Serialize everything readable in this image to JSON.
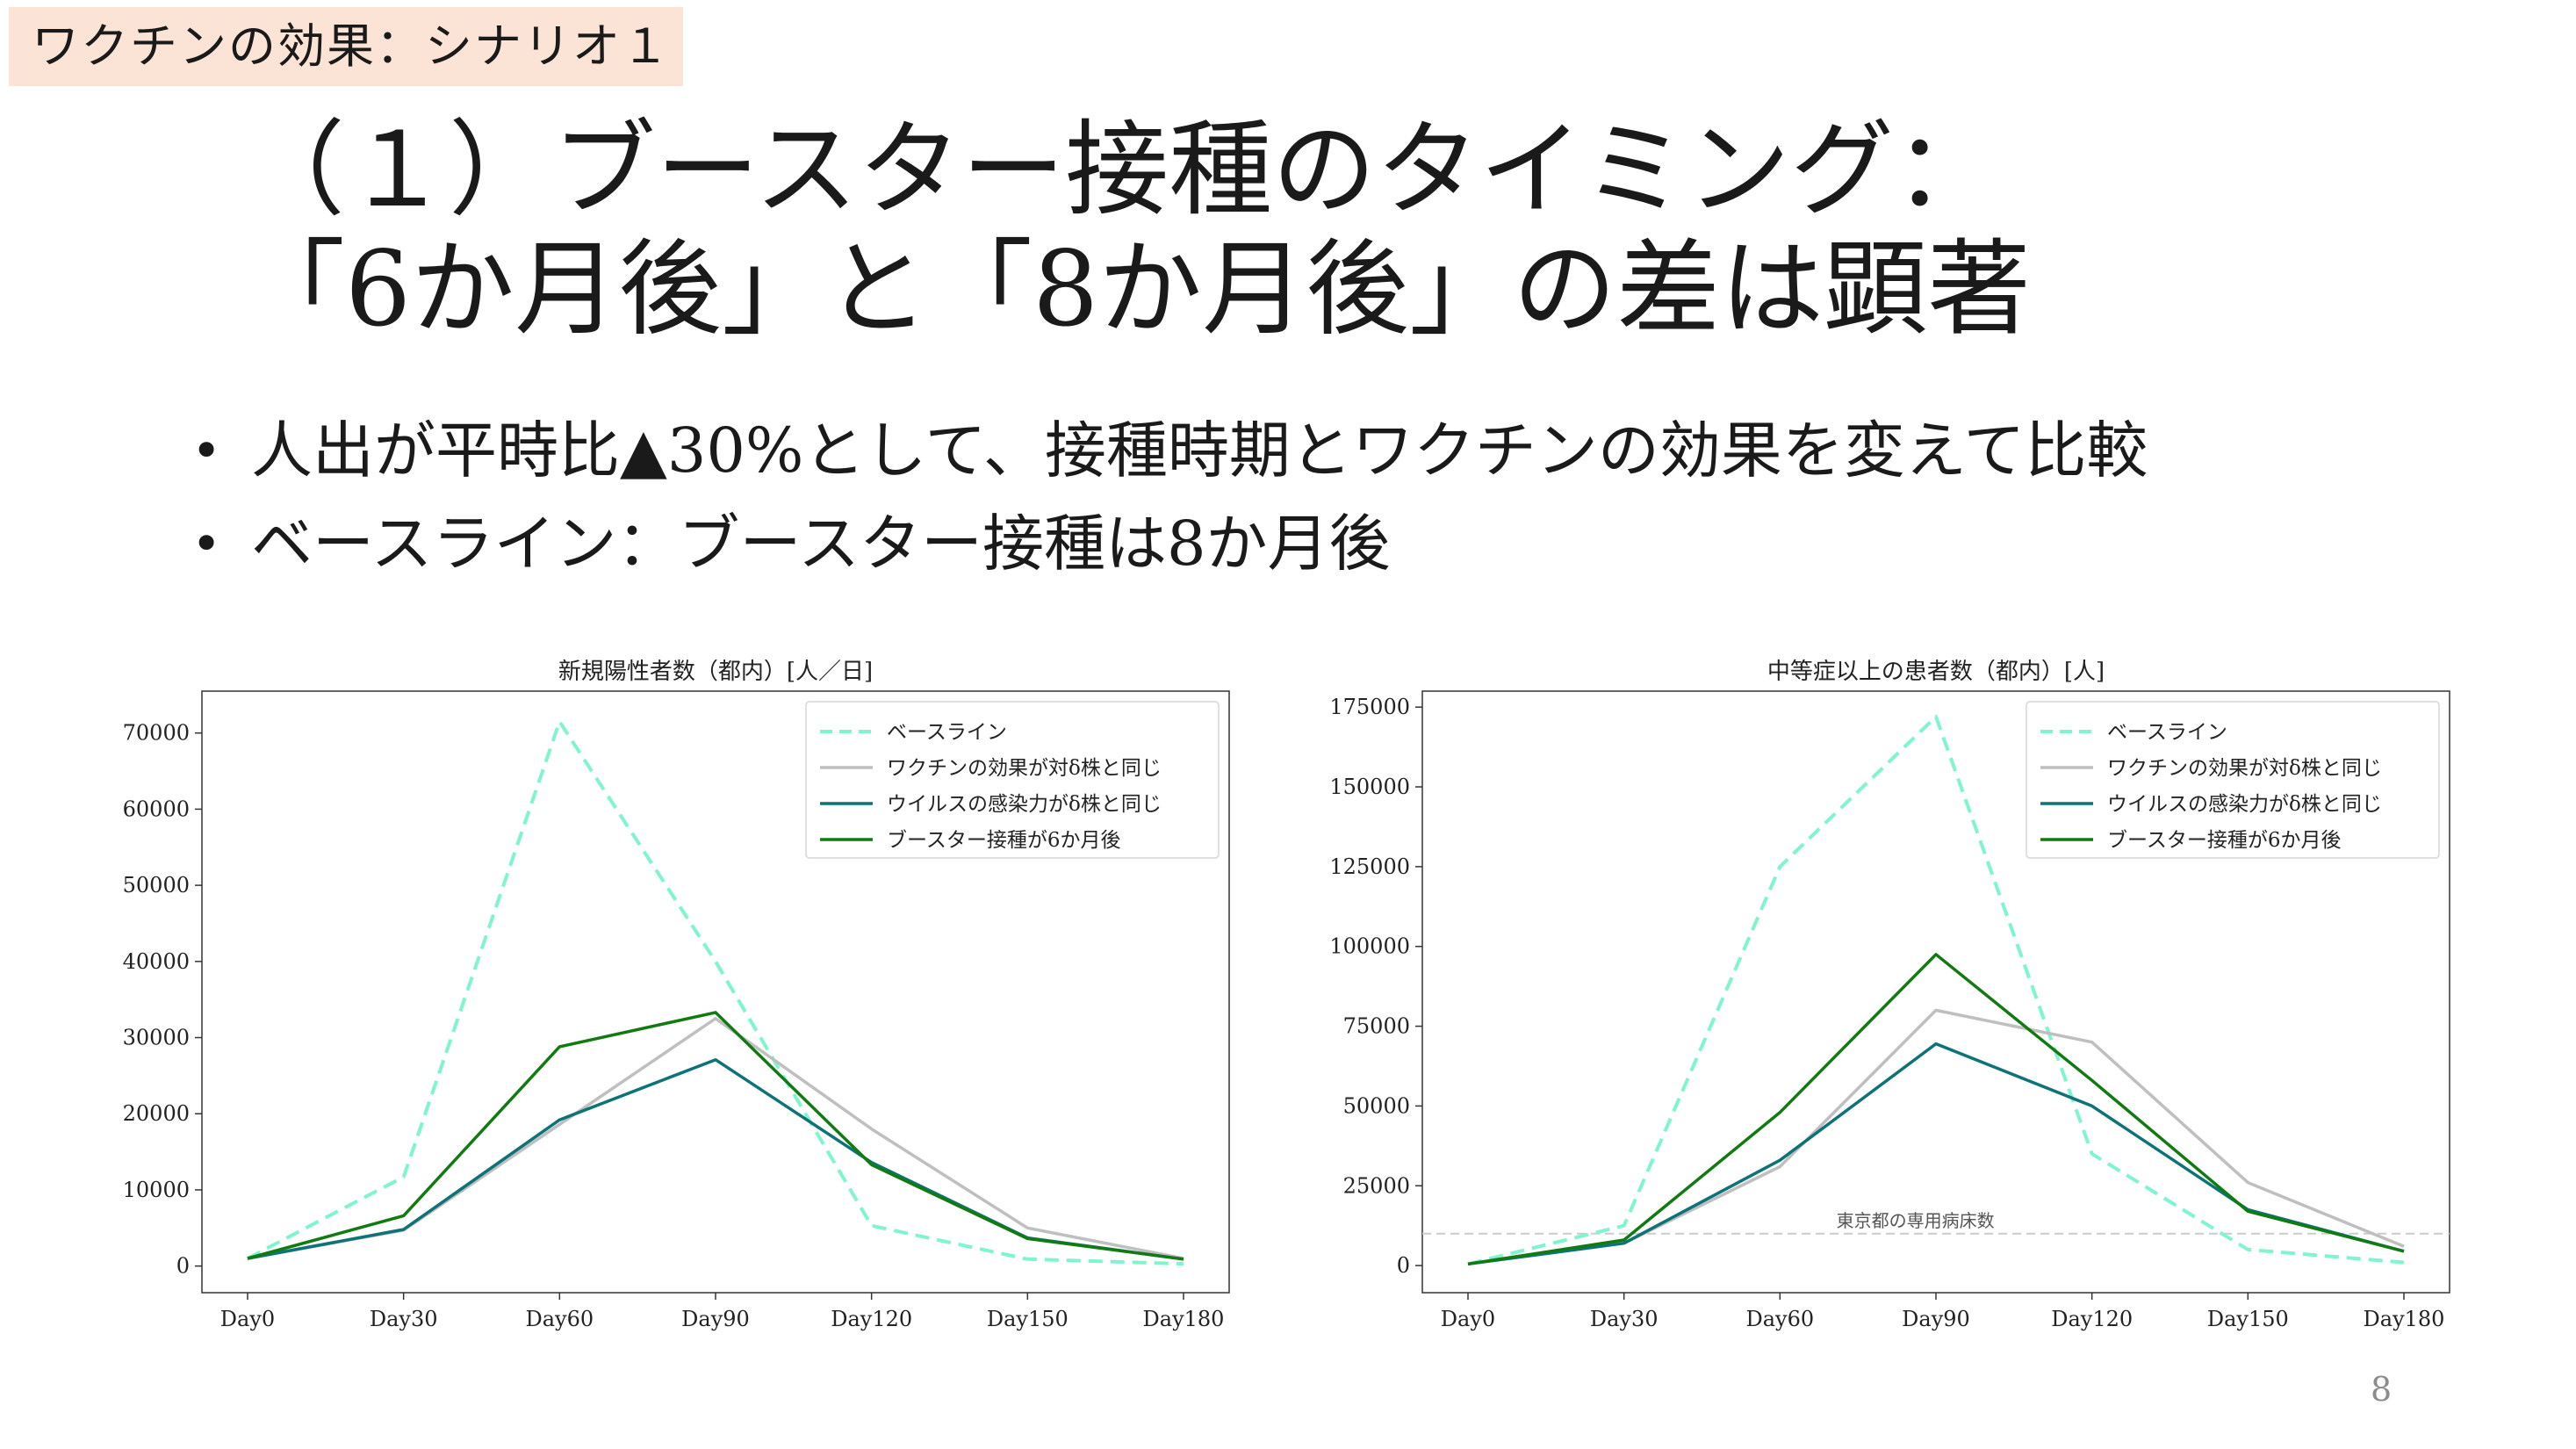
{
  "tag": "ワクチンの効果：シナリオ１",
  "title": {
    "line1": "（１）ブースター接種のタイミング：",
    "line2": "「6か月後」と「8か月後」の差は顕著"
  },
  "bullets": [
    "人出が平時比▲30%として、接種時期とワクチンの効果を変えて比較",
    "ベースライン：ブースター接種は8か月後"
  ],
  "page_number": "8",
  "colors": {
    "baseline": "#7ff5cf",
    "delta_vaccine": "#bfbfbf",
    "delta_infect": "#0d7377",
    "booster": "#117a11"
  },
  "chart_data": [
    {
      "type": "line",
      "title": "新規陽性者数（都内）[人／日]",
      "xlabel": "",
      "ylabel": "",
      "categories": [
        "Day0",
        "Day30",
        "Day60",
        "Day90",
        "Day120",
        "Day150",
        "Day180"
      ],
      "ylim": [
        -3500,
        75500
      ],
      "yticks": [
        0,
        10000,
        20000,
        30000,
        40000,
        50000,
        60000,
        70000
      ],
      "grid": false,
      "legend": "top-right",
      "series": [
        {
          "name": "ベースライン",
          "style": "dashed",
          "color": "#7ff5cf",
          "values": [
            1000,
            11700,
            71500,
            40000,
            5300,
            900,
            300
          ]
        },
        {
          "name": "ワクチンの効果が対δ株と同じ",
          "style": "solid",
          "color": "#bfbfbf",
          "values": [
            1000,
            4700,
            18600,
            32500,
            18000,
            5000,
            1000
          ]
        },
        {
          "name": "ウイルスの感染力がδ株と同じ",
          "style": "solid",
          "color": "#0d7377",
          "values": [
            1000,
            4800,
            19200,
            27100,
            13600,
            3700,
            900
          ]
        },
        {
          "name": "ブースター接種が6か月後",
          "style": "solid",
          "color": "#117a11",
          "values": [
            1000,
            6600,
            28800,
            33300,
            13300,
            3600,
            900
          ]
        }
      ]
    },
    {
      "type": "line",
      "title": "中等症以上の患者数（都内）[人]",
      "xlabel": "",
      "ylabel": "",
      "categories": [
        "Day0",
        "Day30",
        "Day60",
        "Day90",
        "Day120",
        "Day150",
        "Day180"
      ],
      "ylim": [
        -8500,
        180000
      ],
      "yticks": [
        0,
        25000,
        50000,
        75000,
        100000,
        125000,
        150000,
        175000
      ],
      "grid": false,
      "legend": "top-right",
      "reference_line": {
        "value": 10000,
        "label": "東京都の専用病床数"
      },
      "series": [
        {
          "name": "ベースライン",
          "style": "dashed",
          "color": "#7ff5cf",
          "values": [
            500,
            12500,
            125000,
            172000,
            35000,
            5000,
            1000
          ]
        },
        {
          "name": "ワクチンの効果が対δ株と同じ",
          "style": "solid",
          "color": "#bfbfbf",
          "values": [
            500,
            7000,
            31000,
            80000,
            70000,
            26000,
            6000
          ]
        },
        {
          "name": "ウイルスの感染力がδ株と同じ",
          "style": "solid",
          "color": "#0d7377",
          "values": [
            500,
            7000,
            33000,
            69500,
            50000,
            17500,
            4500
          ]
        },
        {
          "name": "ブースター接種が6か月後",
          "style": "solid",
          "color": "#117a11",
          "values": [
            500,
            8000,
            48000,
            97500,
            58000,
            17000,
            4500
          ]
        }
      ]
    }
  ]
}
